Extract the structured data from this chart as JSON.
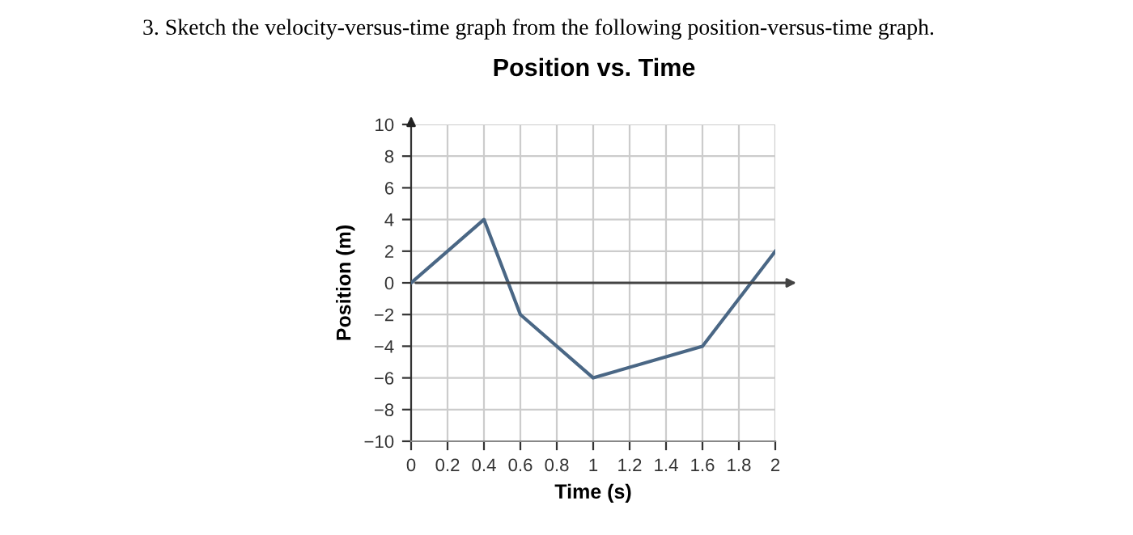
{
  "chart_data": {
    "type": "line",
    "title": "Position vs. Time",
    "xlabel": "Time (s)",
    "ylabel": "Position (m)",
    "annotations": [
      "3. Sketch the velocity-versus-time graph from the following position-versus-time graph."
    ],
    "x": [
      0,
      0.4,
      0.6,
      1,
      1.6,
      2
    ],
    "series": [
      {
        "color": "#4a6785",
        "values": [
          0,
          4,
          -2,
          -6,
          -4,
          2
        ]
      }
    ],
    "xlim": [
      0,
      2
    ],
    "ylim": [
      -10,
      10
    ],
    "xticks": [
      0,
      0.2,
      0.4,
      0.6,
      0.8,
      1,
      1.2,
      1.4,
      1.6,
      1.8,
      2
    ],
    "yticks": [
      10,
      8,
      6,
      4,
      2,
      0,
      {
        "value": -2,
        "label": "−2"
      },
      {
        "value": -4,
        "label": "−4"
      },
      {
        "value": -6,
        "label": "−6"
      },
      {
        "value": -8,
        "label": "−8"
      },
      {
        "value": -10,
        "label": "−10"
      }
    ],
    "grid": true,
    "marker": "none",
    "line_style": "solid"
  }
}
